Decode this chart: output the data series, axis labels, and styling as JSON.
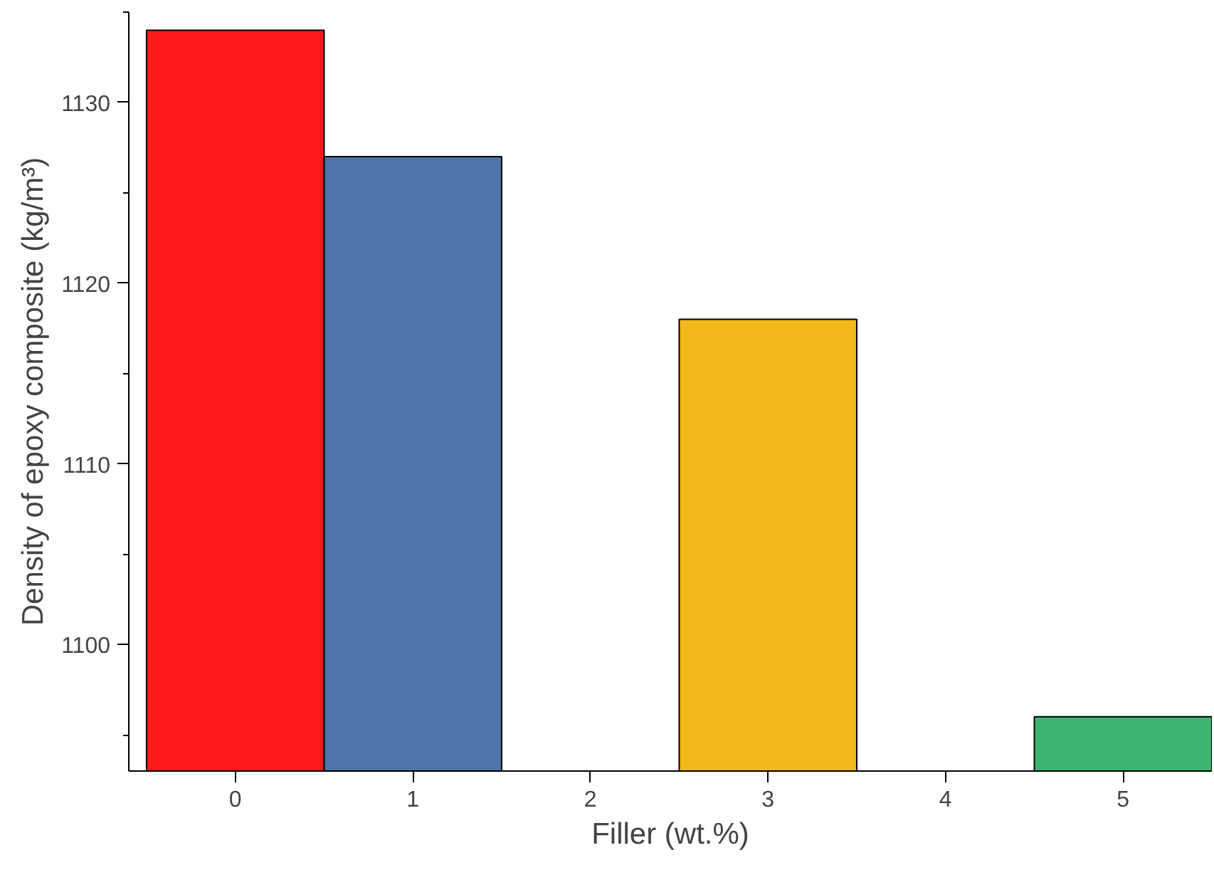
{
  "chart_data": {
    "type": "bar",
    "xlabel": "Filler (wt.%)",
    "ylabel": "Density of epoxy composite (kg/m³)",
    "x": [
      0,
      1,
      3,
      5
    ],
    "values": [
      1134,
      1127,
      1118,
      1096
    ],
    "colors": [
      "#ff1a1a",
      "#4f72a8",
      "#f2b81c",
      "#3fb471"
    ],
    "xlim": [
      -0.6,
      5.5
    ],
    "xticks": [
      0,
      1,
      2,
      3,
      4,
      5
    ],
    "ylim": [
      1093,
      1135
    ],
    "yticks": [
      1100,
      1110,
      1120,
      1130
    ],
    "grid": false
  }
}
